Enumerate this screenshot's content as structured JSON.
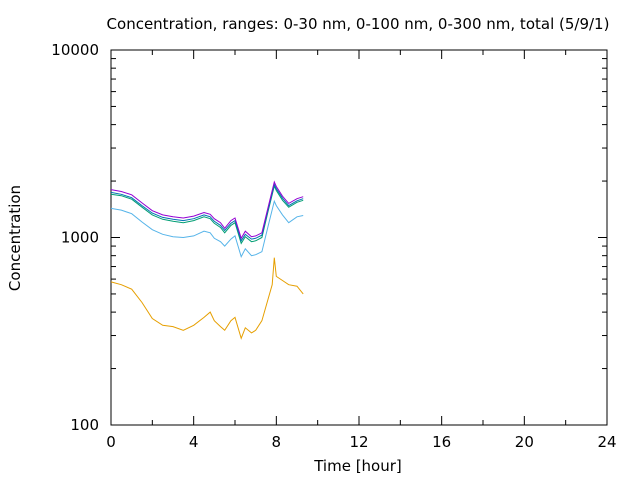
{
  "chart_data": {
    "type": "line",
    "title": "Concentration, ranges: 0-30 nm, 0-100 nm, 0-300 nm, total (5/9/1)",
    "xlabel": "Time [hour]",
    "ylabel": "Concentration",
    "xlim": [
      0,
      24
    ],
    "ylim": [
      100,
      10000
    ],
    "yscale": "log",
    "x_ticks": [
      0,
      4,
      8,
      12,
      16,
      20,
      24
    ],
    "x_tick_labels": [
      "0",
      "4",
      "8",
      "12",
      "16",
      "20",
      "24"
    ],
    "y_ticks": [
      100,
      1000,
      10000
    ],
    "y_tick_labels": [
      "100",
      "1000",
      "10000"
    ],
    "grid": false,
    "legend": "none",
    "series": [
      {
        "color": "#e69f00",
        "points": [
          [
            0,
            580
          ],
          [
            0.5,
            560
          ],
          [
            1,
            530
          ],
          [
            1.5,
            450
          ],
          [
            2,
            370
          ],
          [
            2.5,
            340
          ],
          [
            3,
            335
          ],
          [
            3.5,
            320
          ],
          [
            4,
            340
          ],
          [
            4.5,
            375
          ],
          [
            4.8,
            400
          ],
          [
            5,
            360
          ],
          [
            5.3,
            335
          ],
          [
            5.5,
            320
          ],
          [
            5.8,
            360
          ],
          [
            6,
            375
          ],
          [
            6.3,
            290
          ],
          [
            6.5,
            330
          ],
          [
            6.8,
            310
          ],
          [
            7,
            320
          ],
          [
            7.3,
            360
          ],
          [
            7.6,
            470
          ],
          [
            7.8,
            560
          ],
          [
            7.9,
            780
          ],
          [
            8,
            620
          ],
          [
            8.3,
            590
          ],
          [
            8.6,
            560
          ],
          [
            9,
            550
          ],
          [
            9.3,
            500
          ]
        ]
      },
      {
        "color": "#56b4e9",
        "points": [
          [
            0,
            1430
          ],
          [
            0.5,
            1400
          ],
          [
            1,
            1340
          ],
          [
            1.5,
            1210
          ],
          [
            2,
            1100
          ],
          [
            2.5,
            1040
          ],
          [
            3,
            1010
          ],
          [
            3.5,
            1000
          ],
          [
            4,
            1020
          ],
          [
            4.5,
            1080
          ],
          [
            4.8,
            1060
          ],
          [
            5,
            990
          ],
          [
            5.3,
            950
          ],
          [
            5.5,
            900
          ],
          [
            5.8,
            980
          ],
          [
            6,
            1020
          ],
          [
            6.3,
            790
          ],
          [
            6.5,
            870
          ],
          [
            6.8,
            800
          ],
          [
            7,
            810
          ],
          [
            7.3,
            840
          ],
          [
            7.6,
            1150
          ],
          [
            7.9,
            1560
          ],
          [
            8,
            1480
          ],
          [
            8.3,
            1320
          ],
          [
            8.6,
            1200
          ],
          [
            9,
            1290
          ],
          [
            9.3,
            1310
          ]
        ]
      },
      {
        "color": "#009e73",
        "points": [
          [
            0,
            1700
          ],
          [
            0.5,
            1670
          ],
          [
            1,
            1600
          ],
          [
            1.5,
            1450
          ],
          [
            2,
            1320
          ],
          [
            2.5,
            1250
          ],
          [
            3,
            1220
          ],
          [
            3.5,
            1200
          ],
          [
            4,
            1230
          ],
          [
            4.5,
            1290
          ],
          [
            4.8,
            1260
          ],
          [
            5,
            1190
          ],
          [
            5.3,
            1130
          ],
          [
            5.5,
            1060
          ],
          [
            5.8,
            1160
          ],
          [
            6,
            1200
          ],
          [
            6.3,
            930
          ],
          [
            6.5,
            1010
          ],
          [
            6.8,
            950
          ],
          [
            7,
            960
          ],
          [
            7.3,
            1000
          ],
          [
            7.6,
            1380
          ],
          [
            7.9,
            1880
          ],
          [
            8,
            1780
          ],
          [
            8.3,
            1580
          ],
          [
            8.6,
            1450
          ],
          [
            9,
            1540
          ],
          [
            9.3,
            1580
          ]
        ]
      },
      {
        "color": "#0072b2",
        "points": [
          [
            0,
            1740
          ],
          [
            0.5,
            1700
          ],
          [
            1,
            1630
          ],
          [
            1.5,
            1480
          ],
          [
            2,
            1350
          ],
          [
            2.5,
            1280
          ],
          [
            3,
            1250
          ],
          [
            3.5,
            1230
          ],
          [
            4,
            1260
          ],
          [
            4.5,
            1320
          ],
          [
            4.8,
            1290
          ],
          [
            5,
            1220
          ],
          [
            5.3,
            1160
          ],
          [
            5.5,
            1090
          ],
          [
            5.8,
            1190
          ],
          [
            6,
            1230
          ],
          [
            6.3,
            960
          ],
          [
            6.5,
            1040
          ],
          [
            6.8,
            980
          ],
          [
            7,
            990
          ],
          [
            7.3,
            1030
          ],
          [
            7.6,
            1410
          ],
          [
            7.9,
            1920
          ],
          [
            8,
            1820
          ],
          [
            8.3,
            1620
          ],
          [
            8.6,
            1480
          ],
          [
            9,
            1570
          ],
          [
            9.3,
            1610
          ]
        ]
      },
      {
        "color": "#9400d3",
        "points": [
          [
            0,
            1800
          ],
          [
            0.5,
            1760
          ],
          [
            1,
            1690
          ],
          [
            1.5,
            1530
          ],
          [
            2,
            1390
          ],
          [
            2.5,
            1320
          ],
          [
            3,
            1290
          ],
          [
            3.5,
            1270
          ],
          [
            4,
            1300
          ],
          [
            4.5,
            1360
          ],
          [
            4.8,
            1330
          ],
          [
            5,
            1260
          ],
          [
            5.3,
            1200
          ],
          [
            5.5,
            1120
          ],
          [
            5.8,
            1230
          ],
          [
            6,
            1270
          ],
          [
            6.3,
            990
          ],
          [
            6.5,
            1080
          ],
          [
            6.8,
            1010
          ],
          [
            7,
            1020
          ],
          [
            7.3,
            1060
          ],
          [
            7.6,
            1450
          ],
          [
            7.9,
            1980
          ],
          [
            8,
            1870
          ],
          [
            8.3,
            1660
          ],
          [
            8.6,
            1520
          ],
          [
            9,
            1610
          ],
          [
            9.3,
            1650
          ]
        ]
      }
    ]
  }
}
